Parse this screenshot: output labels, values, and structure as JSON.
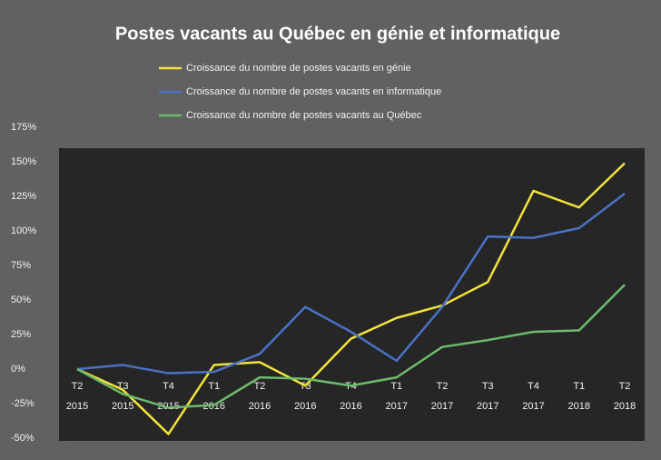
{
  "chart_data": {
    "type": "line",
    "title": "Postes vacants au Québec en génie et informatique",
    "categories": [
      [
        "T2",
        "2015"
      ],
      [
        "T3",
        "2015"
      ],
      [
        "T4",
        "2015"
      ],
      [
        "T1",
        "2016"
      ],
      [
        "T2",
        "2016"
      ],
      [
        "T3",
        "2016"
      ],
      [
        "T4",
        "2016"
      ],
      [
        "T1",
        "2017"
      ],
      [
        "T2",
        "2017"
      ],
      [
        "T3",
        "2017"
      ],
      [
        "T4",
        "2017"
      ],
      [
        "T1",
        "2018"
      ],
      [
        "T2",
        "2018"
      ]
    ],
    "series": [
      {
        "name": "Croissance du nombre de postes vacants en génie",
        "color": "#f2e23a",
        "values": [
          0,
          -15,
          -47,
          3,
          5,
          -12,
          22,
          37,
          46,
          63,
          129,
          117,
          149
        ]
      },
      {
        "name": "Croissance du nombre de postes vacants en informatique",
        "color": "#4a72c4",
        "values": [
          0,
          3,
          -3,
          -2,
          11,
          45,
          27,
          6,
          45,
          96,
          95,
          102,
          127
        ]
      },
      {
        "name": "Croissance du nombre de postes vacants au Québec",
        "color": "#6dbb6a",
        "values": [
          0,
          -18,
          -28,
          -26,
          -6,
          -7,
          -12,
          -6,
          16,
          21,
          27,
          28,
          61
        ]
      }
    ],
    "ylim": [
      -50,
      175
    ],
    "yticks": [
      {
        "value": -50,
        "label": "-50%"
      },
      {
        "value": -25,
        "label": "-25%"
      },
      {
        "value": 0,
        "label": "0%"
      },
      {
        "value": 25,
        "label": "25%"
      },
      {
        "value": 50,
        "label": "50%"
      },
      {
        "value": 75,
        "label": "75%"
      },
      {
        "value": 100,
        "label": "100%"
      },
      {
        "value": 125,
        "label": "125%"
      },
      {
        "value": 150,
        "label": "150%"
      },
      {
        "value": 175,
        "label": "175%"
      }
    ],
    "grid": false,
    "legend": "top"
  }
}
